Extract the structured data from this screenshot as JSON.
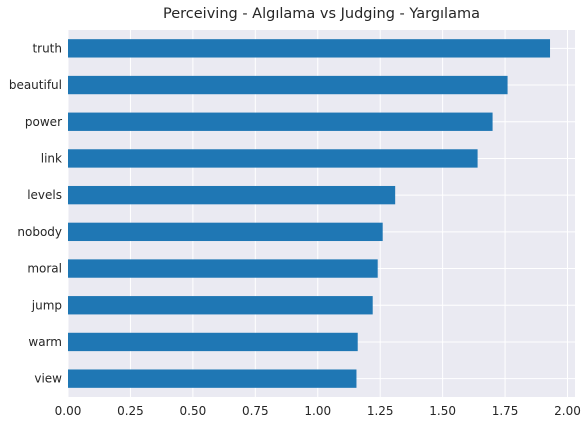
{
  "chart_data": {
    "type": "bar",
    "orientation": "horizontal",
    "title": "Perceiving - Algılama vs Judging - Yargılama",
    "xlabel": "",
    "ylabel": "",
    "categories": [
      "truth",
      "beautiful",
      "power",
      "link",
      "levels",
      "nobody",
      "moral",
      "jump",
      "warm",
      "view"
    ],
    "values": [
      1.93,
      1.76,
      1.7,
      1.64,
      1.31,
      1.26,
      1.24,
      1.22,
      1.16,
      1.155
    ],
    "xlim": [
      0,
      2.03
    ],
    "xticks": [
      "0.00",
      "0.25",
      "0.50",
      "0.75",
      "1.00",
      "1.25",
      "1.50",
      "1.75",
      "2.00"
    ],
    "grid": true,
    "bar_color": "#1f77b4",
    "background_color": "#eaeaf2",
    "grid_color": "#ffffff"
  }
}
